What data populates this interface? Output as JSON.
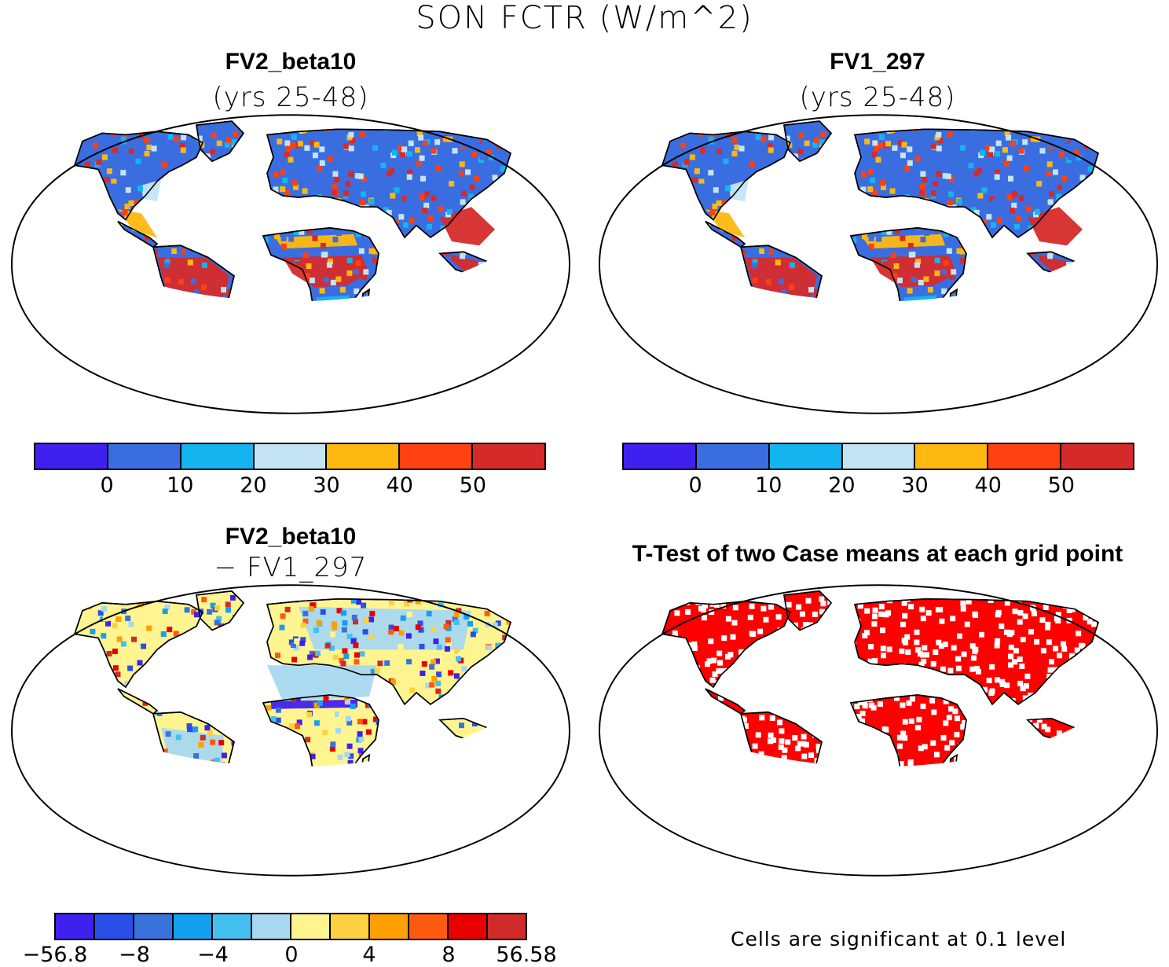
{
  "figure": {
    "title": "SON FCTR (W/m^2)"
  },
  "panels": {
    "top_left": {
      "title": "FV2_beta10",
      "subtitle": "(yrs 25-48)"
    },
    "top_right": {
      "title": "FV1_297",
      "subtitle": "(yrs 25-48)"
    },
    "bottom_left": {
      "title": "FV2_beta10",
      "subtitle": "− FV1_297"
    },
    "bottom_right": {
      "title": "T-Test of two Case means at each grid point",
      "note": "Cells are significant at 0.1 level"
    }
  },
  "colorbars": {
    "absolute": {
      "colors": [
        "#4020ee",
        "#3a6ee0",
        "#14b4f0",
        "#c4e4f4",
        "#ffb810",
        "#ff4010",
        "#d62a2a"
      ],
      "ticks": [
        "0",
        "10",
        "20",
        "30",
        "40",
        "50"
      ]
    },
    "difference": {
      "colors": [
        "#4020ee",
        "#2850e8",
        "#3a72dc",
        "#14a0f0",
        "#44c0f0",
        "#a8d8f0",
        "#fff590",
        "#ffd040",
        "#ffa000",
        "#ff5a10",
        "#e80000",
        "#d02a2a"
      ],
      "ticks": [
        "−56.8",
        "−8",
        "−4",
        "0",
        "4",
        "8",
        "56.58"
      ]
    }
  },
  "map_colors": {
    "land_base_absolute": "#3a6ee0",
    "land_tropics_absolute": "#d62a2a",
    "land_mid_absolute": "#14b4f0",
    "land_base_difference": "#fff590",
    "land_mid_difference": "#a8d8f0",
    "significant": "#ff0000",
    "ocean": "#ffffff",
    "coast": "#000000"
  }
}
